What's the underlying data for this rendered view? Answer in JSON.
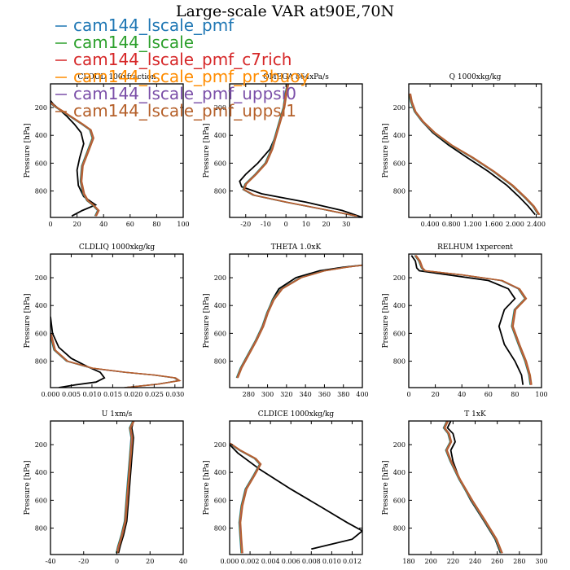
{
  "figure": {
    "title": "Large-scale VAR at90E,70N"
  },
  "legend": [
    {
      "name": "cam144_lscale_pmf",
      "color": "#1f77b4"
    },
    {
      "name": "cam144_lscale",
      "color": "#2ca02c"
    },
    {
      "name": "cam144_lscale_pmf_c7rich",
      "color": "#d62728"
    },
    {
      "name": "cam144_lscale_pmf_pr3buoy",
      "color": "#ff8c00"
    },
    {
      "name": "cam144_lscale_pmf_uppsi0",
      "color": "#7b4fa8"
    },
    {
      "name": "cam144_lscale_pmf_uppsi1",
      "color": "#b5602a"
    }
  ],
  "black_line_color": "#000000",
  "chart_data": [
    {
      "type": "line",
      "title": "CLOUD 100xfraction",
      "ylabel": "Pressure [hPa]",
      "xlim": [
        0,
        100
      ],
      "ylim": [
        990,
        30
      ],
      "xticks": [
        "0",
        "20",
        "40",
        "60",
        "80",
        "100"
      ],
      "yticks": [
        "200",
        "400",
        "600",
        "800"
      ],
      "series": [
        {
          "name": "black",
          "x": [
            0,
            2,
            5,
            12,
            18,
            23,
            25,
            22,
            20,
            21,
            25,
            31,
            34,
            24,
            16
          ],
          "y": [
            150,
            175,
            200,
            260,
            320,
            380,
            460,
            560,
            650,
            760,
            840,
            880,
            900,
            940,
            980
          ]
        },
        {
          "name": "models",
          "x": [
            0,
            3,
            8,
            16,
            24,
            30,
            32,
            28,
            24,
            23,
            25,
            28,
            32,
            36,
            34
          ],
          "y": [
            165,
            190,
            220,
            270,
            320,
            360,
            420,
            520,
            620,
            730,
            820,
            870,
            900,
            940,
            980
          ]
        }
      ]
    },
    {
      "type": "line",
      "title": "OMEGA  864xPa/s",
      "ylabel": "Pressure [hPa]",
      "xlim": [
        -28,
        38
      ],
      "ylim": [
        990,
        30
      ],
      "xticks": [
        "-20",
        "-10",
        "0",
        "10",
        "20",
        "30"
      ],
      "yticks": [
        "200",
        "400",
        "600",
        "800"
      ],
      "series": [
        {
          "name": "black",
          "x": [
            1,
            0,
            -1,
            -3,
            -5,
            -8,
            -14,
            -20,
            -23,
            -22,
            -12,
            10,
            28,
            38
          ],
          "y": [
            30,
            100,
            200,
            300,
            400,
            500,
            600,
            680,
            730,
            770,
            820,
            880,
            940,
            990
          ]
        },
        {
          "name": "models",
          "x": [
            1,
            0,
            -1,
            -3,
            -5,
            -7,
            -10,
            -15,
            -20,
            -21,
            -16,
            0,
            18,
            35
          ],
          "y": [
            30,
            100,
            200,
            300,
            400,
            500,
            600,
            680,
            750,
            790,
            830,
            880,
            930,
            980
          ]
        }
      ]
    },
    {
      "type": "line",
      "title": "Q  1000xkg/kg",
      "ylabel": "Pressure [hPa]",
      "xlim": [
        0,
        2.5
      ],
      "ylim": [
        990,
        30
      ],
      "xticks": [
        "0.400",
        "0.800",
        "1.200",
        "1.600",
        "2.000",
        "2.400"
      ],
      "yticks": [
        "200",
        "400",
        "600",
        "800"
      ],
      "series": [
        {
          "name": "black",
          "x": [
            0.02,
            0.05,
            0.12,
            0.25,
            0.45,
            0.75,
            1.1,
            1.5,
            1.85,
            2.1,
            2.25,
            2.38
          ],
          "y": [
            100,
            160,
            230,
            300,
            380,
            470,
            560,
            660,
            760,
            850,
            910,
            970
          ]
        },
        {
          "name": "models",
          "x": [
            0.02,
            0.05,
            0.12,
            0.26,
            0.48,
            0.8,
            1.2,
            1.6,
            1.95,
            2.2,
            2.35,
            2.45
          ],
          "y": [
            100,
            160,
            230,
            300,
            380,
            470,
            560,
            660,
            760,
            850,
            910,
            970
          ]
        }
      ]
    },
    {
      "type": "line",
      "title": "CLDLIQ  1000xkg/kg",
      "ylabel": "Pressure [hPa]",
      "xlim": [
        0,
        0.032
      ],
      "ylim": [
        990,
        30
      ],
      "xticks": [
        "0.000",
        "0.005",
        "0.010",
        "0.015",
        "0.020",
        "0.025",
        "0.030"
      ],
      "yticks": [
        "200",
        "400",
        "600",
        "800"
      ],
      "series": [
        {
          "name": "black",
          "x": [
            0,
            0.0005,
            0.002,
            0.005,
            0.009,
            0.012,
            0.013,
            0.011,
            0.006,
            0.002
          ],
          "y": [
            480,
            600,
            700,
            780,
            840,
            880,
            920,
            950,
            970,
            990
          ]
        },
        {
          "name": "models",
          "x": [
            0,
            0.001,
            0.004,
            0.01,
            0.018,
            0.025,
            0.03,
            0.031,
            0.026,
            0.018
          ],
          "y": [
            600,
            720,
            800,
            850,
            880,
            900,
            920,
            940,
            965,
            990
          ]
        }
      ]
    },
    {
      "type": "line",
      "title": "THETA  1.0xK",
      "ylabel": "Pressure [hPa]",
      "xlim": [
        260,
        400
      ],
      "ylim": [
        990,
        30
      ],
      "xticks": [
        "280",
        "300",
        "320",
        "340",
        "360",
        "380",
        "400"
      ],
      "yticks": [
        "200",
        "400",
        "600",
        "800"
      ],
      "series": [
        {
          "name": "black",
          "x": [
            400,
            380,
            355,
            330,
            312,
            305,
            300,
            295,
            288,
            280,
            272,
            268
          ],
          "y": [
            110,
            125,
            150,
            200,
            280,
            360,
            450,
            550,
            650,
            750,
            850,
            920
          ]
        },
        {
          "name": "models",
          "x": [
            400,
            383,
            360,
            335,
            315,
            306,
            300,
            295,
            288,
            280,
            272,
            268
          ],
          "y": [
            110,
            125,
            150,
            200,
            280,
            360,
            450,
            550,
            650,
            750,
            850,
            920
          ]
        }
      ]
    },
    {
      "type": "line",
      "title": "RELHUM  1xpercent",
      "ylabel": "Pressure [hPa]",
      "xlim": [
        0,
        100
      ],
      "ylim": [
        990,
        30
      ],
      "xticks": [
        "0",
        "20",
        "40",
        "60",
        "80",
        "100"
      ],
      "yticks": [
        "200",
        "400",
        "600",
        "800"
      ],
      "series": [
        {
          "name": "black",
          "x": [
            2,
            5,
            6,
            8,
            30,
            60,
            75,
            80,
            72,
            68,
            72,
            80,
            85,
            86
          ],
          "y": [
            40,
            80,
            130,
            150,
            180,
            220,
            280,
            350,
            430,
            550,
            680,
            800,
            900,
            970
          ]
        },
        {
          "name": "models",
          "x": [
            5,
            8,
            10,
            12,
            40,
            70,
            83,
            88,
            80,
            78,
            83,
            88,
            91,
            92
          ],
          "y": [
            40,
            80,
            130,
            150,
            180,
            220,
            280,
            350,
            430,
            550,
            680,
            800,
            900,
            970
          ]
        }
      ]
    },
    {
      "type": "line",
      "title": "U  1xm/s",
      "ylabel": "Pressure [hPa]",
      "xlim": [
        -40,
        40
      ],
      "ylim": [
        990,
        30
      ],
      "xticks": [
        "-40",
        "-20",
        "0",
        "20",
        "40"
      ],
      "yticks": [
        "200",
        "400",
        "600",
        "800"
      ],
      "series": [
        {
          "name": "black",
          "x": [
            10,
            9,
            10,
            9,
            8,
            7,
            6,
            4,
            2,
            1
          ],
          "y": [
            30,
            80,
            150,
            300,
            450,
            600,
            750,
            850,
            930,
            980
          ]
        },
        {
          "name": "models",
          "x": [
            10,
            8,
            9,
            8,
            7,
            6,
            5,
            3,
            1,
            0
          ],
          "y": [
            30,
            80,
            150,
            300,
            450,
            600,
            750,
            850,
            930,
            980
          ]
        }
      ]
    },
    {
      "type": "line",
      "title": "CLDICE  1000xkg/kg",
      "ylabel": "Pressure [hPa]",
      "xlim": [
        0,
        0.013
      ],
      "ylim": [
        990,
        30
      ],
      "xticks": [
        "0.000",
        "0.002",
        "0.004",
        "0.006",
        "0.008",
        "0.010",
        "0.012"
      ],
      "yticks": [
        "200",
        "400",
        "600",
        "800"
      ],
      "series": [
        {
          "name": "black",
          "x": [
            0,
            0.0008,
            0.003,
            0.006,
            0.009,
            0.0115,
            0.013,
            0.012,
            0.008
          ],
          "y": [
            200,
            260,
            380,
            520,
            650,
            760,
            820,
            880,
            950
          ]
        },
        {
          "name": "models",
          "x": [
            0,
            0.001,
            0.0025,
            0.003,
            0.0024,
            0.0016,
            0.0012,
            0.001,
            0.0011,
            0.0012
          ],
          "y": [
            190,
            240,
            300,
            340,
            420,
            520,
            640,
            760,
            880,
            980
          ]
        }
      ]
    },
    {
      "type": "line",
      "title": "T  1xK",
      "ylabel": "Pressure [hPa]",
      "xlim": [
        180,
        300
      ],
      "ylim": [
        990,
        30
      ],
      "xticks": [
        "180",
        "200",
        "220",
        "240",
        "260",
        "280",
        "300"
      ],
      "yticks": [
        "200",
        "400",
        "600",
        "800"
      ],
      "series": [
        {
          "name": "black",
          "x": [
            218,
            215,
            220,
            222,
            218,
            220,
            226,
            236,
            248,
            258,
            263
          ],
          "y": [
            30,
            80,
            120,
            180,
            240,
            320,
            450,
            600,
            750,
            880,
            980
          ]
        },
        {
          "name": "models",
          "x": [
            215,
            212,
            216,
            218,
            214,
            218,
            226,
            237,
            249,
            259,
            264
          ],
          "y": [
            30,
            80,
            120,
            180,
            240,
            320,
            450,
            600,
            750,
            880,
            980
          ]
        }
      ]
    }
  ]
}
